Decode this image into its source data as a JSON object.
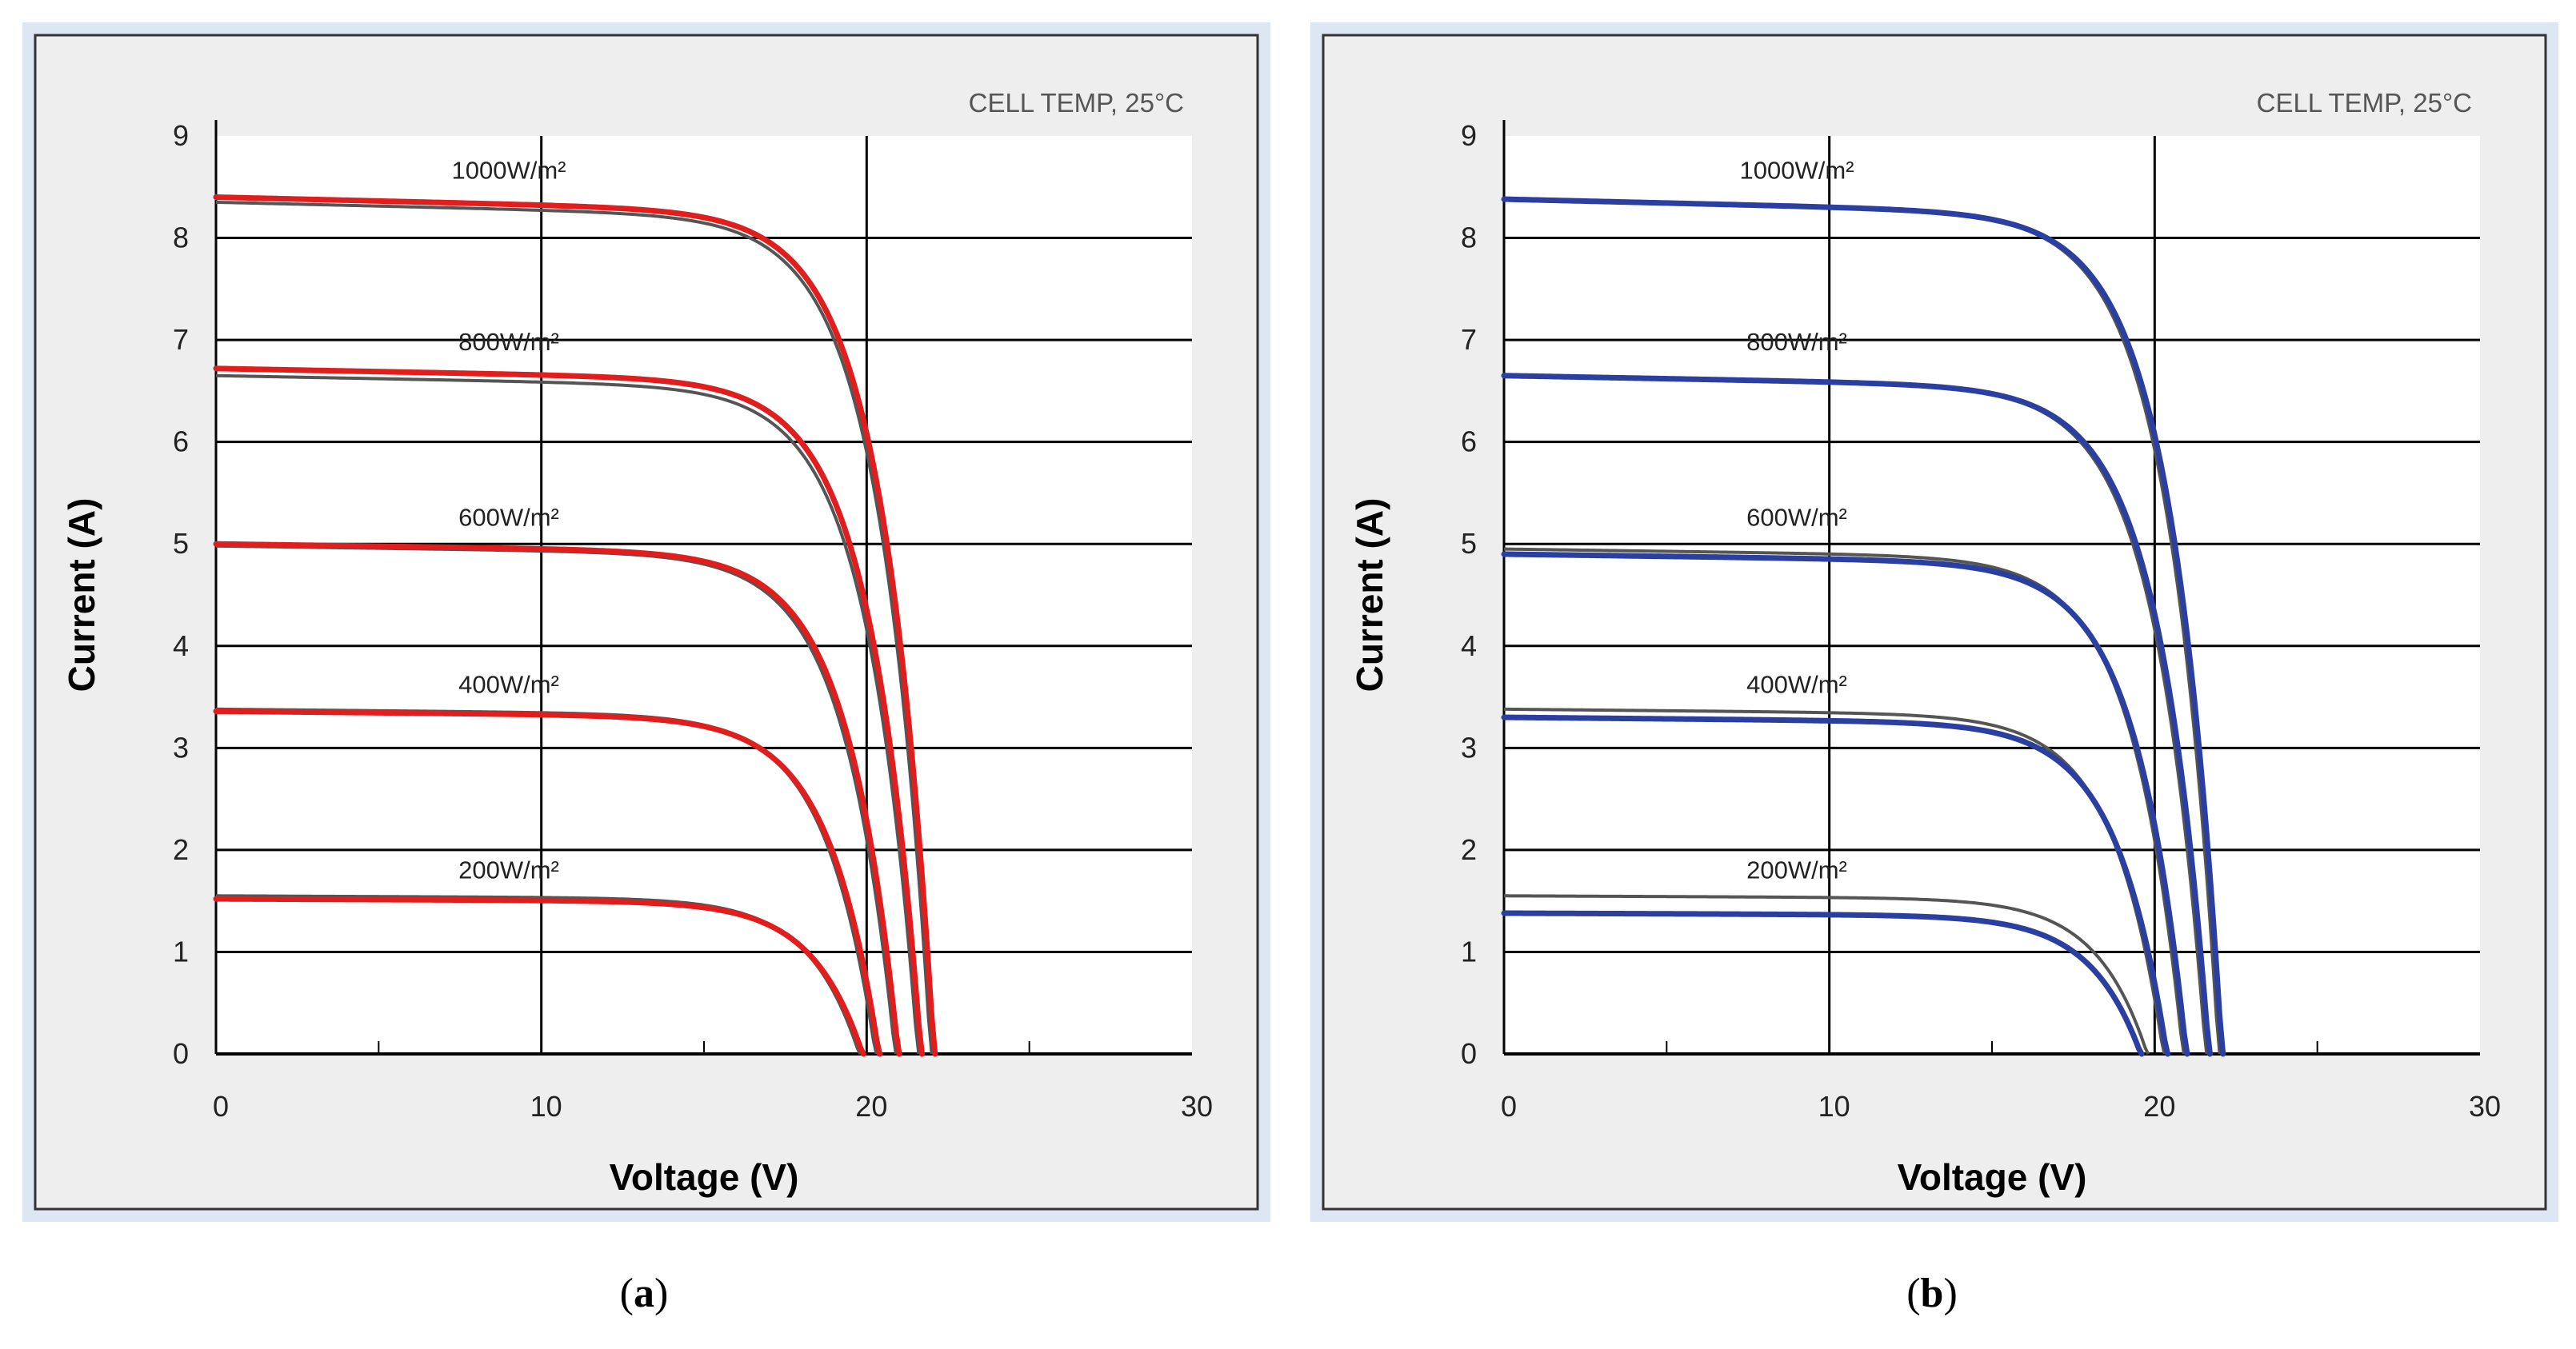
{
  "chart_data": [
    {
      "type": "line",
      "panel_caption": "a",
      "title": "CELL TEMP, 25°C",
      "xlabel": "Voltage (V)",
      "ylabel": "Current (A)",
      "xlim": [
        0,
        30
      ],
      "ylim": [
        0,
        9
      ],
      "xticks": [
        "0",
        "10",
        "20",
        "30"
      ],
      "yticks": [
        "0",
        "1",
        "2",
        "3",
        "4",
        "5",
        "6",
        "7",
        "8",
        "9"
      ],
      "grid": true,
      "overlay_color": "#e01e1e",
      "reference_color": "#555555",
      "series": [
        {
          "name": "1000W/m²",
          "isc": 8.4,
          "voc": 22.1,
          "label_at": [
            9,
            8.58
          ],
          "ref_isc": 8.35,
          "ref_voc": 22.0
        },
        {
          "name": "800W/m²",
          "isc": 6.72,
          "voc": 21.7,
          "label_at": [
            9,
            6.9
          ],
          "ref_isc": 6.65,
          "ref_voc": 21.6
        },
        {
          "name": "600W/m²",
          "isc": 5.0,
          "voc": 21.0,
          "label_at": [
            9,
            5.18
          ],
          "ref_isc": 4.98,
          "ref_voc": 20.9
        },
        {
          "name": "400W/m²",
          "isc": 3.36,
          "voc": 20.4,
          "label_at": [
            9,
            3.54
          ],
          "ref_isc": 3.38,
          "ref_voc": 20.3
        },
        {
          "name": "200W/m²",
          "isc": 1.52,
          "voc": 19.9,
          "label_at": [
            9,
            1.72
          ],
          "ref_isc": 1.55,
          "ref_voc": 19.8
        }
      ]
    },
    {
      "type": "line",
      "panel_caption": "b",
      "title": "CELL TEMP, 25°C",
      "xlabel": "Voltage (V)",
      "ylabel": "Current (A)",
      "xlim": [
        0,
        30
      ],
      "ylim": [
        0,
        9
      ],
      "xticks": [
        "0",
        "10",
        "20",
        "30"
      ],
      "yticks": [
        "0",
        "1",
        "2",
        "3",
        "4",
        "5",
        "6",
        "7",
        "8",
        "9"
      ],
      "grid": true,
      "overlay_color": "#2b3fa0",
      "reference_color": "#555555",
      "series": [
        {
          "name": "1000W/m²",
          "isc": 8.38,
          "voc": 22.1,
          "label_at": [
            9,
            8.58
          ],
          "ref_isc": 8.38,
          "ref_voc": 22.0
        },
        {
          "name": "800W/m²",
          "isc": 6.65,
          "voc": 21.7,
          "label_at": [
            9,
            6.9
          ],
          "ref_isc": 6.65,
          "ref_voc": 21.6
        },
        {
          "name": "600W/m²",
          "isc": 4.9,
          "voc": 21.0,
          "label_at": [
            9,
            5.18
          ],
          "ref_isc": 4.95,
          "ref_voc": 20.9
        },
        {
          "name": "400W/m²",
          "isc": 3.3,
          "voc": 20.4,
          "label_at": [
            9,
            3.54
          ],
          "ref_isc": 3.38,
          "ref_voc": 20.3
        },
        {
          "name": "200W/m²",
          "isc": 1.38,
          "voc": 19.6,
          "label_at": [
            9,
            1.72
          ],
          "ref_isc": 1.55,
          "ref_voc": 19.8
        }
      ]
    }
  ]
}
